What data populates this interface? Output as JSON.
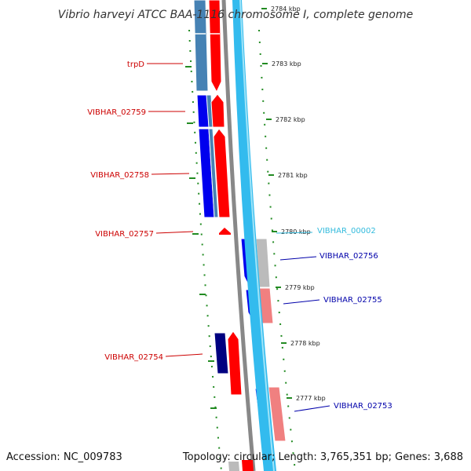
{
  "title": "Vibrio harveyi ATCC BAA-1116 chromosome I, complete genome",
  "footer": {
    "accession": "Accession: NC_009783",
    "summary": "Topology: circular; Length: 3,765,351 bp; Genes: 3,688"
  },
  "colors": {
    "reverse_label": "#cc0000",
    "forward_label": "#0000aa",
    "rna_label": "#33bbdd",
    "cds_forward": "#0000ee",
    "cds_reverse": "#ff0000",
    "steel_blue": "#4682b4",
    "navy": "#000080",
    "salmon": "#f08080",
    "gray": "#bbbbbb",
    "tick": "#228b22",
    "backbone": "#888888",
    "backbone_light": "#33bbee"
  },
  "scale_labels": [
    "2784 kbp",
    "2783 kbp",
    "2782 kbp",
    "2781 kbp",
    "2780 kbp",
    "2779 kbp",
    "2778 kbp",
    "2777 kbp"
  ],
  "left_labels": [
    "trpD",
    "VIBHAR_02759",
    "VIBHAR_02758",
    "VIBHAR_02757",
    "VIBHAR_02754"
  ],
  "right_labels": [
    "VIBHAR_00002",
    "VIBHAR_02756",
    "VIBHAR_02755",
    "VIBHAR_02753"
  ]
}
